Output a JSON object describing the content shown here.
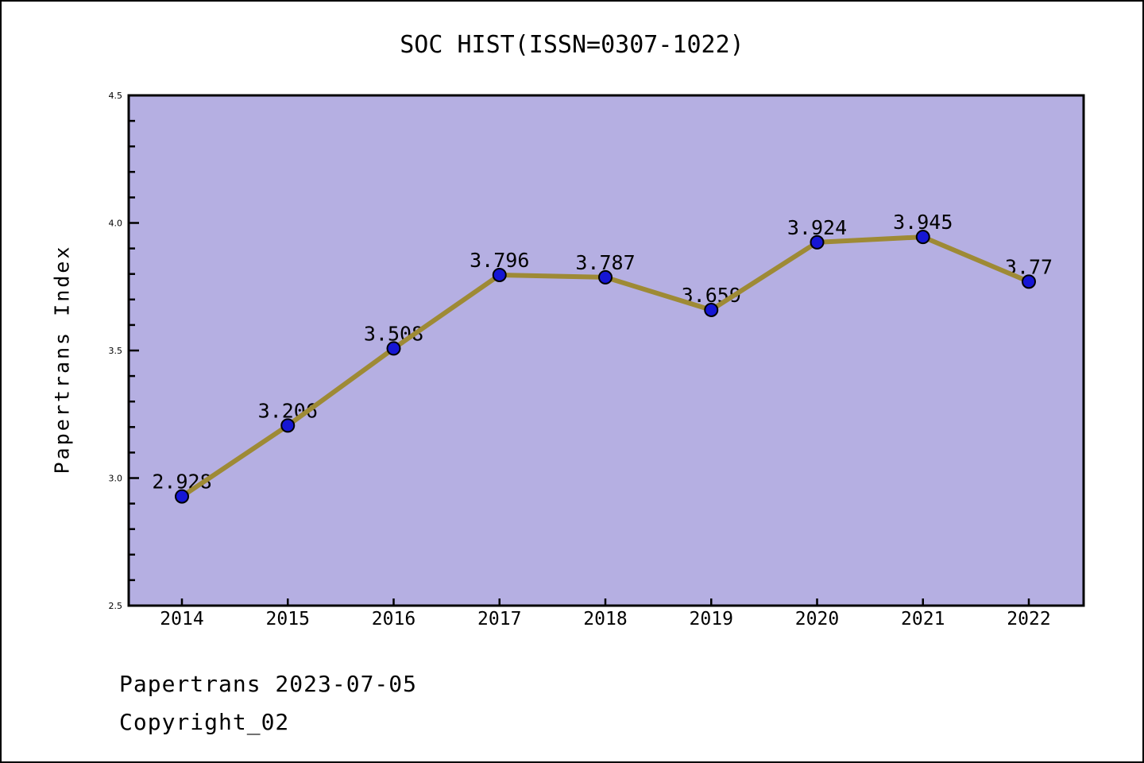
{
  "page": {
    "title": "SOC HIST(ISSN=0307-1022)",
    "footer_line1": "Papertrans 2023-07-05",
    "footer_line2": "Copyright_02"
  },
  "chart_data": {
    "type": "line",
    "title": "SOC HIST(ISSN=0307-1022)",
    "xlabel": "",
    "ylabel": "Papertrans Index",
    "categories": [
      "2014",
      "2015",
      "2016",
      "2017",
      "2018",
      "2019",
      "2020",
      "2021",
      "2022"
    ],
    "values": [
      2.928,
      3.206,
      3.508,
      3.796,
      3.787,
      3.659,
      3.924,
      3.945,
      3.77
    ],
    "point_labels": [
      "2.928",
      "3.206",
      "3.508",
      "3.796",
      "3.787",
      "3.659",
      "3.924",
      "3.945",
      "3.77"
    ],
    "ylim": [
      2.5,
      4.5
    ],
    "y_major_ticks": [
      "2.5",
      "3.0",
      "3.5",
      "4.0",
      "4.5"
    ],
    "y_minor_step": 0.1,
    "grid": false,
    "legend": "none",
    "marker": "circle",
    "colors": {
      "line": "#9E8A35",
      "marker_fill": "#1616D4",
      "marker_edge": "#000000",
      "plot_bg": "#B5AFE2",
      "page_bg": "#FFFFFF",
      "axis": "#000000",
      "text": "#000000"
    }
  }
}
